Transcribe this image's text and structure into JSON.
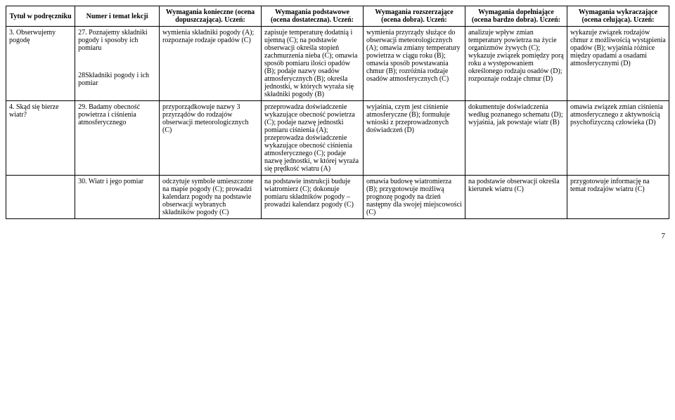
{
  "headers": {
    "c0": "Tytuł w podręczniku",
    "c1": "Numer i temat lekcji",
    "c2": "Wymagania konieczne (ocena dopuszczająca). Uczeń:",
    "c3": "Wymagania podstawowe (ocena dostateczna). Uczeń:",
    "c4": "Wymagania rozszerzające (ocena dobra). Uczeń:",
    "c5": "Wymagania dopełniające (ocena bardzo dobra). Uczeń:",
    "c6": "Wymagania wykraczające (ocena celująca). Uczeń:"
  },
  "rows": [
    {
      "c0": "3. Obserwujemy pogodę",
      "c1a": "27. Poznajemy składniki pogody i sposoby ich pomiaru",
      "c1b": "28Składniki pogody i ich pomiar",
      "c2": "wymienia składniki pogody (A); rozpoznaje rodzaje opadów (C)",
      "c3": "zapisuje temperaturę dodatnią i ujemną (C); na podstawie obserwacji określa stopień zachmurzenia nieba (C); omawia sposób pomiaru ilości opadów (B); podaje nazwy osadów atmosferycznych (B); określa jednostki, w których wyraża się składniki pogody (B)",
      "c4": "wymienia przyrządy służące do obserwacji meteorologicznych (A); omawia zmiany temperatury powietrza w ciągu roku (B); omawia sposób powstawania chmur (B); rozróżnia rodzaje osadów atmosferycznych (C)",
      "c5": "analizuje wpływ zmian temperatury powietrza na życie organizmów żywych (C); wykazuje związek pomiędzy porą roku a występowaniem określonego rodzaju osadów (D); rozpoznaje rodzaje chmur (D)",
      "c6": "wykazuje związek rodzajów chmur z możliwością wystąpienia opadów (B); wyjaśnia różnice między opadami a osadami atmosferycznymi (D)"
    },
    {
      "c0": "4. Skąd się bierze wiatr?",
      "c1": "29. Badamy obecność powietrza i ciśnienia atmosferycznego",
      "c2": "przyporządkowuje nazwy 3 przyrządów do rodzajów obserwacji meteorologicznych (C)",
      "c3": "przeprowadza doświadczenie wykazujące obecność powietrza (C); podaje nazwę jednostki pomiaru ciśnienia (A); przeprowadza doświadczenie wykazujące obecność ciśnienia atmosferycznego (C); podaje nazwę jednostki, w której wyraża się prędkość wiatru (A)",
      "c4": "wyjaśnia, czym jest ciśnienie atmosferyczne (B); formułuje wnioski z przeprowadzonych doświadczeń (D)",
      "c5": "dokumentuje doświadczenia według poznanego schematu (D); wyjaśnia, jak powstaje wiatr (B)",
      "c6": "omawia związek zmian ciśnienia atmosferycznego z aktywnością psychofizyczną człowieka (D)"
    },
    {
      "c0": "",
      "c1": "30. Wiatr i jego pomiar",
      "c2": "odczytuje symbole umieszczone na mapie pogody (C); prowadzi kalendarz pogody na podstawie obserwacji wybranych składników pogody (C)",
      "c3": "na podstawie instrukcji buduje wiatromierz (C); dokonuje pomiaru składników pogody – prowadzi kalendarz pogody (C)",
      "c4": "omawia budowę wiatromierza (B); przygotowuje możliwą prognozę pogody na dzień następny dla swojej miejscowości (C)",
      "c5": "na podstawie obserwacji określa kierunek wiatru (C)",
      "c6": "przygotowuje informację na temat rodzajów wiatru (C)"
    }
  ],
  "pageNumber": "7"
}
